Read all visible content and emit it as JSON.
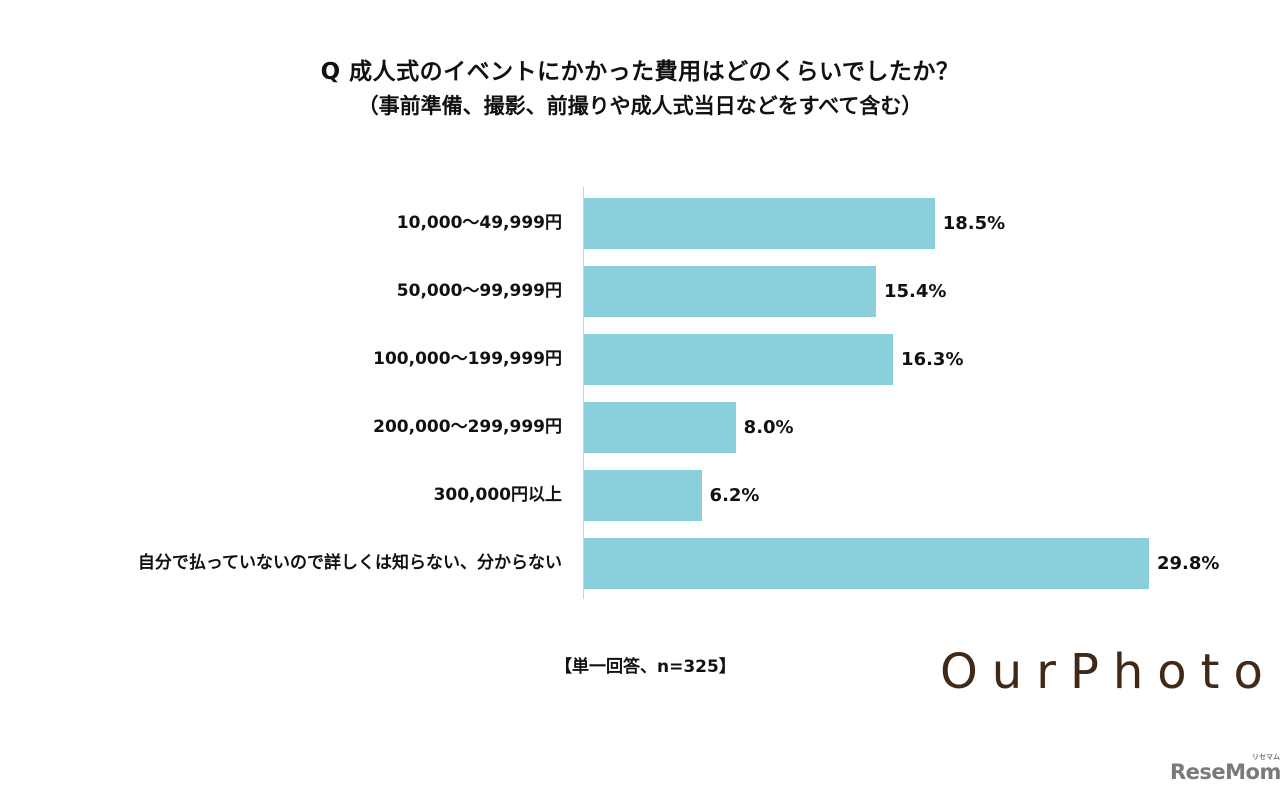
{
  "header": {
    "title": "Q 成人式のイベントにかかった費用はどのくらいでしたか？",
    "subtitle": "（事前準備、撮影、前撮りや成人式当日などをすべて含む）"
  },
  "chart_data": {
    "type": "bar",
    "orientation": "horizontal",
    "title": "Q 成人式のイベントにかかった費用はどのくらいでしたか？",
    "subtitle": "（事前準備、撮影、前撮りや成人式当日などをすべて含む）",
    "categories": [
      "10,000〜49,999円",
      "50,000〜99,999円",
      "100,000〜199,999円",
      "200,000〜299,999円",
      "300,000円以上",
      "自分で払っていないので詳しくは知らない、分からない"
    ],
    "values": [
      18.5,
      15.4,
      16.3,
      8.0,
      6.2,
      29.8
    ],
    "value_labels": [
      "18.5%",
      "15.4%",
      "16.3%",
      "8.0%",
      "6.2%",
      "29.8%"
    ],
    "unit": "%",
    "xlabel": "",
    "ylabel": "",
    "grid": false,
    "legend": null,
    "bar_color": "#8ccfdc",
    "note": "【単一回答、n=325】"
  },
  "footer": {
    "note": "【単一回答、n=325】",
    "brand_logo": "OurPhoto",
    "source_logo": "ReseMom",
    "source_logo_ruby": "リセマム"
  }
}
